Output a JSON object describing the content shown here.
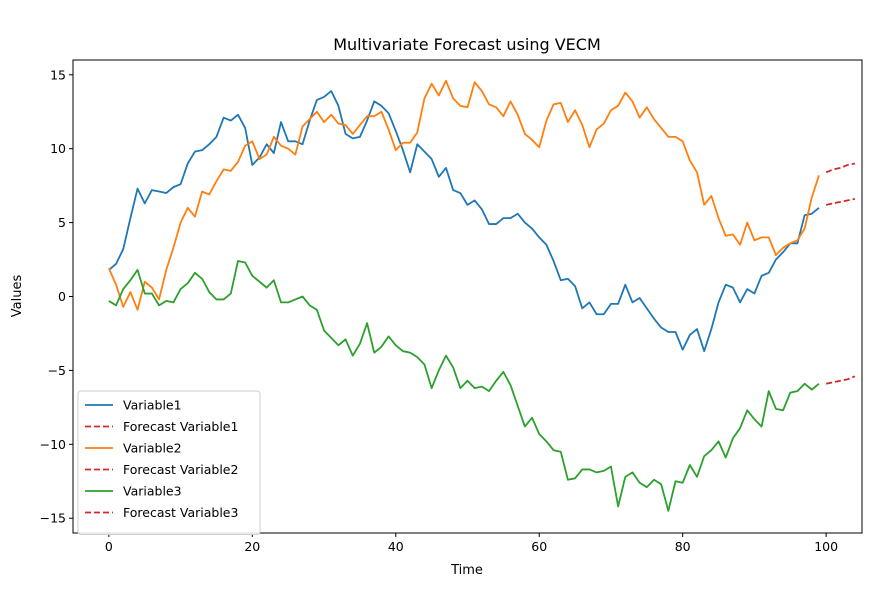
{
  "chart_data": {
    "type": "line",
    "title": "Multivariate Forecast using VECM",
    "xlabel": "Time",
    "ylabel": "Values",
    "xlim": [
      -5,
      105
    ],
    "ylim": [
      -16,
      16
    ],
    "xticks": [
      0,
      20,
      40,
      60,
      80,
      100
    ],
    "yticks": [
      -15,
      -10,
      -5,
      0,
      5,
      10,
      15
    ],
    "grid": false,
    "legend_position": "lower-left",
    "series": [
      {
        "name": "Variable1",
        "color": "#1f77b4",
        "style": "solid",
        "x": [
          0,
          1,
          2,
          3,
          4,
          5,
          6,
          7,
          8,
          9,
          10,
          11,
          12,
          13,
          14,
          15,
          16,
          17,
          18,
          19,
          20,
          21,
          22,
          23,
          24,
          25,
          26,
          27,
          28,
          29,
          30,
          31,
          32,
          33,
          34,
          35,
          36,
          37,
          38,
          39,
          40,
          41,
          42,
          43,
          44,
          45,
          46,
          47,
          48,
          49,
          50,
          51,
          52,
          53,
          54,
          55,
          56,
          57,
          58,
          59,
          60,
          61,
          62,
          63,
          64,
          65,
          66,
          67,
          68,
          69,
          70,
          71,
          72,
          73,
          74,
          75,
          76,
          77,
          78,
          79,
          80,
          81,
          82,
          83,
          84,
          85,
          86,
          87,
          88,
          89,
          90,
          91,
          92,
          93,
          94,
          95,
          96,
          97,
          98,
          99
        ],
        "y": [
          1.8,
          2.2,
          3.2,
          5.3,
          7.3,
          6.3,
          7.2,
          7.1,
          7.0,
          7.4,
          7.6,
          9.0,
          9.8,
          9.9,
          10.3,
          10.8,
          12.1,
          11.9,
          12.3,
          11.4,
          8.9,
          9.4,
          10.3,
          9.7,
          11.8,
          10.5,
          10.5,
          10.3,
          11.9,
          13.3,
          13.5,
          13.9,
          12.9,
          11.0,
          10.7,
          10.8,
          11.9,
          13.2,
          12.9,
          12.4,
          11.2,
          9.9,
          8.4,
          10.3,
          9.8,
          9.3,
          8.1,
          8.7,
          7.2,
          7.0,
          6.2,
          6.5,
          5.9,
          4.9,
          4.9,
          5.3,
          5.3,
          5.6,
          5.0,
          4.6,
          4.0,
          3.5,
          2.4,
          1.1,
          1.2,
          0.7,
          -0.8,
          -0.4,
          -1.2,
          -1.2,
          -0.5,
          -0.5,
          0.8,
          -0.4,
          -0.1,
          -0.8,
          -1.5,
          -2.1,
          -2.4,
          -2.4,
          -3.6,
          -2.6,
          -2.2,
          -3.7,
          -2.2,
          -0.4,
          0.8,
          0.6,
          -0.4,
          0.5,
          0.2,
          1.4,
          1.6,
          2.5,
          3.0,
          3.6,
          3.6,
          5.5,
          5.6,
          6.0
        ]
      },
      {
        "name": "Forecast Variable1",
        "color": "#d62728",
        "style": "dashed",
        "x": [
          100,
          101,
          102,
          103,
          104
        ],
        "y": [
          6.2,
          6.3,
          6.4,
          6.5,
          6.6
        ]
      },
      {
        "name": "Variable2",
        "color": "#ff7f0e",
        "style": "solid",
        "x": [
          0,
          1,
          2,
          3,
          4,
          5,
          6,
          7,
          8,
          9,
          10,
          11,
          12,
          13,
          14,
          15,
          16,
          17,
          18,
          19,
          20,
          21,
          22,
          23,
          24,
          25,
          26,
          27,
          28,
          29,
          30,
          31,
          32,
          33,
          34,
          35,
          36,
          37,
          38,
          39,
          40,
          41,
          42,
          43,
          44,
          45,
          46,
          47,
          48,
          49,
          50,
          51,
          52,
          53,
          54,
          55,
          56,
          57,
          58,
          59,
          60,
          61,
          62,
          63,
          64,
          65,
          66,
          67,
          68,
          69,
          70,
          71,
          72,
          73,
          74,
          75,
          76,
          77,
          78,
          79,
          80,
          81,
          82,
          83,
          84,
          85,
          86,
          87,
          88,
          89,
          90,
          91,
          92,
          93,
          94,
          95,
          96,
          97,
          98,
          99
        ],
        "y": [
          1.9,
          0.8,
          -0.7,
          0.3,
          -0.9,
          1.0,
          0.6,
          -0.2,
          1.8,
          3.3,
          5.0,
          6.0,
          5.4,
          7.1,
          6.9,
          7.8,
          8.6,
          8.5,
          9.1,
          10.2,
          10.5,
          9.3,
          9.6,
          10.8,
          10.2,
          10.0,
          9.6,
          11.5,
          12.0,
          12.5,
          11.8,
          12.3,
          11.7,
          11.6,
          11.0,
          11.6,
          12.2,
          12.2,
          12.5,
          11.3,
          9.9,
          10.4,
          10.4,
          11.1,
          13.4,
          14.4,
          13.6,
          14.6,
          13.4,
          12.9,
          12.8,
          14.5,
          13.9,
          13.0,
          12.8,
          12.2,
          13.2,
          12.3,
          11.0,
          10.6,
          10.1,
          11.9,
          13.0,
          13.1,
          11.8,
          12.6,
          11.6,
          10.1,
          11.3,
          11.7,
          12.6,
          12.9,
          13.8,
          13.2,
          12.1,
          12.8,
          12.0,
          11.4,
          10.8,
          10.8,
          10.5,
          9.2,
          8.4,
          6.2,
          6.8,
          5.3,
          4.1,
          4.2,
          3.5,
          5.0,
          3.8,
          4.0,
          4.0,
          2.8,
          3.3,
          3.6,
          3.8,
          4.6,
          6.7,
          8.2
        ]
      },
      {
        "name": "Forecast Variable2",
        "color": "#d62728",
        "style": "dashed",
        "x": [
          100,
          101,
          102,
          103,
          104
        ],
        "y": [
          8.4,
          8.6,
          8.7,
          8.9,
          9.0
        ]
      },
      {
        "name": "Variable3",
        "color": "#2ca02c",
        "style": "solid",
        "x": [
          0,
          1,
          2,
          3,
          4,
          5,
          6,
          7,
          8,
          9,
          10,
          11,
          12,
          13,
          14,
          15,
          16,
          17,
          18,
          19,
          20,
          21,
          22,
          23,
          24,
          25,
          26,
          27,
          28,
          29,
          30,
          31,
          32,
          33,
          34,
          35,
          36,
          37,
          38,
          39,
          40,
          41,
          42,
          43,
          44,
          45,
          46,
          47,
          48,
          49,
          50,
          51,
          52,
          53,
          54,
          55,
          56,
          57,
          58,
          59,
          60,
          61,
          62,
          63,
          64,
          65,
          66,
          67,
          68,
          69,
          70,
          71,
          72,
          73,
          74,
          75,
          76,
          77,
          78,
          79,
          80,
          81,
          82,
          83,
          84,
          85,
          86,
          87,
          88,
          89,
          90,
          91,
          92,
          93,
          94,
          95,
          96,
          97,
          98,
          99
        ],
        "y": [
          -0.3,
          -0.6,
          0.5,
          1.1,
          1.8,
          0.2,
          0.2,
          -0.6,
          -0.3,
          -0.4,
          0.5,
          0.9,
          1.6,
          1.2,
          0.3,
          -0.2,
          -0.2,
          0.2,
          2.4,
          2.3,
          1.4,
          1.0,
          0.6,
          1.1,
          -0.4,
          -0.4,
          -0.2,
          0.0,
          -0.6,
          -0.9,
          -2.3,
          -2.8,
          -3.3,
          -2.9,
          -4.0,
          -3.2,
          -1.8,
          -3.8,
          -3.4,
          -2.7,
          -3.3,
          -3.7,
          -3.8,
          -4.1,
          -4.6,
          -6.2,
          -5.0,
          -4.0,
          -4.8,
          -6.2,
          -5.7,
          -6.2,
          -6.1,
          -6.4,
          -5.7,
          -5.1,
          -6.0,
          -7.4,
          -8.8,
          -8.2,
          -9.3,
          -9.8,
          -10.4,
          -10.5,
          -12.4,
          -12.3,
          -11.7,
          -11.7,
          -11.9,
          -11.8,
          -11.5,
          -14.2,
          -12.2,
          -11.9,
          -12.6,
          -12.9,
          -12.4,
          -12.7,
          -14.5,
          -12.5,
          -12.6,
          -11.4,
          -12.2,
          -10.8,
          -10.4,
          -9.8,
          -10.9,
          -9.6,
          -8.9,
          -7.7,
          -8.3,
          -8.8,
          -6.4,
          -7.6,
          -7.7,
          -6.5,
          -6.4,
          -5.9,
          -6.3,
          -5.9
        ]
      },
      {
        "name": "Forecast Variable3",
        "color": "#d62728",
        "style": "dashed",
        "x": [
          100,
          101,
          102,
          103,
          104
        ],
        "y": [
          -5.9,
          -5.8,
          -5.7,
          -5.6,
          -5.4
        ]
      }
    ]
  }
}
